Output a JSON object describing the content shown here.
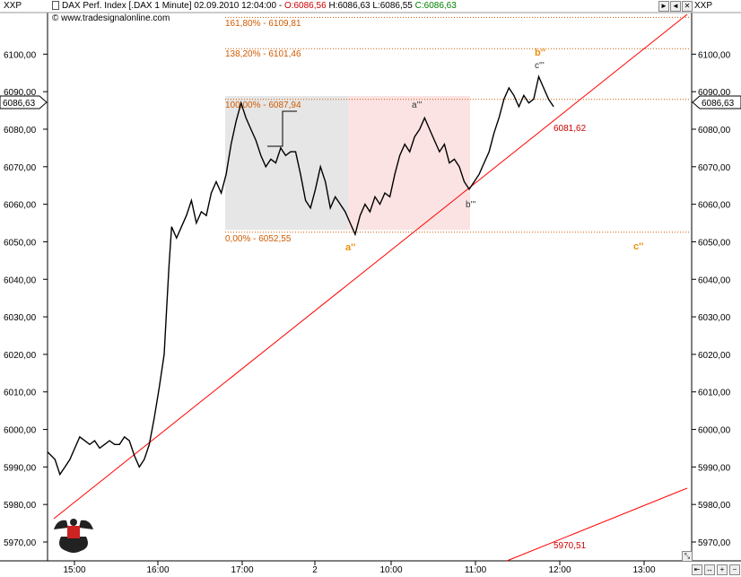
{
  "header": {
    "symbol_left": "XXP",
    "symbol_right": "XXP",
    "title": "DAX Perf. Index [.DAX  1 Minute] 02.09.2010 12:04:00 - ",
    "open": "O:6086,56",
    "high": "H:6086,63",
    "low": "L:6086,55",
    "close": "C:6086,63",
    "source": "www.tradesignalonline.com"
  },
  "last_price": "6086,63",
  "colors": {
    "fib": "#d05a00",
    "trend": "#ff0000",
    "wave_major": "#e8900a",
    "grey_box": "#e6e6e6",
    "pink_box": "#fbe3e3",
    "close_green": "#008000",
    "open_red": "#cc0000"
  },
  "chart_data": {
    "type": "line",
    "title": "DAX Perf. Index [.DAX  1 Minute]",
    "ylim": [
      5965,
      6113
    ],
    "y_ticks": [
      "5970,00",
      "5980,00",
      "5990,00",
      "6000,00",
      "6010,00",
      "6020,00",
      "6030,00",
      "6040,00",
      "6050,00",
      "6060,00",
      "6070,00",
      "6080,00",
      "6090,00",
      "6100,00"
    ],
    "x_tick_labels": [
      "15:00",
      "16:00",
      "17:00",
      "2",
      "10:00",
      "11:00",
      "12:00",
      "13:00"
    ],
    "series": [
      {
        "values": [
          [
            0,
            5994
          ],
          [
            3,
            5992
          ],
          [
            5,
            5988
          ],
          [
            7,
            5990
          ],
          [
            9,
            5992
          ],
          [
            11,
            5995
          ],
          [
            13,
            5998
          ],
          [
            15,
            5997
          ],
          [
            17,
            5996
          ],
          [
            19,
            5997
          ],
          [
            21,
            5995
          ],
          [
            23,
            5996
          ],
          [
            25,
            5997
          ],
          [
            27,
            5996
          ],
          [
            29,
            5996
          ],
          [
            31,
            5998
          ],
          [
            33,
            5997
          ],
          [
            35,
            5993
          ],
          [
            37,
            5990
          ],
          [
            39,
            5992
          ],
          [
            41,
            5996
          ],
          [
            43,
            6003
          ],
          [
            45,
            6011
          ],
          [
            47,
            6020
          ],
          [
            48,
            6032
          ],
          [
            49,
            6044
          ],
          [
            50,
            6054
          ],
          [
            52,
            6051
          ],
          [
            54,
            6054
          ],
          [
            56,
            6057
          ],
          [
            58,
            6061
          ],
          [
            60,
            6055
          ],
          [
            62,
            6058
          ],
          [
            64,
            6057
          ],
          [
            66,
            6063
          ],
          [
            68,
            6066
          ],
          [
            70,
            6063
          ],
          [
            72,
            6068
          ],
          [
            74,
            6076
          ],
          [
            76,
            6082
          ],
          [
            78,
            6087
          ],
          [
            80,
            6083
          ],
          [
            82,
            6080
          ],
          [
            84,
            6077
          ],
          [
            86,
            6073
          ],
          [
            88,
            6070
          ],
          [
            90,
            6072
          ],
          [
            92,
            6071
          ],
          [
            94,
            6075
          ],
          [
            96,
            6073
          ],
          [
            98,
            6074
          ],
          [
            100,
            6074
          ],
          [
            102,
            6068
          ],
          [
            104,
            6061
          ],
          [
            106,
            6059
          ],
          [
            108,
            6064
          ],
          [
            110,
            6070
          ],
          [
            112,
            6066
          ],
          [
            114,
            6059
          ],
          [
            116,
            6062
          ],
          [
            118,
            6060
          ],
          [
            120,
            6058
          ],
          [
            122,
            6055
          ],
          [
            124,
            6052
          ],
          [
            126,
            6057
          ],
          [
            128,
            6060
          ],
          [
            130,
            6058
          ],
          [
            132,
            6062
          ],
          [
            134,
            6060
          ],
          [
            136,
            6063
          ],
          [
            138,
            6062
          ],
          [
            140,
            6068
          ],
          [
            142,
            6073
          ],
          [
            144,
            6076
          ],
          [
            146,
            6074
          ],
          [
            148,
            6078
          ],
          [
            150,
            6080
          ],
          [
            152,
            6083
          ],
          [
            154,
            6080
          ],
          [
            156,
            6077
          ],
          [
            158,
            6074
          ],
          [
            160,
            6076
          ],
          [
            162,
            6071
          ],
          [
            164,
            6072
          ],
          [
            166,
            6070
          ],
          [
            168,
            6066
          ],
          [
            170,
            6064
          ],
          [
            172,
            6066
          ],
          [
            174,
            6068
          ],
          [
            176,
            6071
          ],
          [
            178,
            6074
          ],
          [
            180,
            6079
          ],
          [
            182,
            6083
          ],
          [
            184,
            6088
          ],
          [
            186,
            6091
          ],
          [
            188,
            6089
          ],
          [
            190,
            6086
          ],
          [
            192,
            6089
          ],
          [
            194,
            6087
          ],
          [
            196,
            6088
          ],
          [
            198,
            6094
          ],
          [
            200,
            6091
          ],
          [
            202,
            6088
          ],
          [
            204,
            6086
          ]
        ]
      }
    ],
    "fibonacci": [
      {
        "label": "161,80% - 6109,81",
        "value": 6109.81
      },
      {
        "label": "138,20% - 6101,46",
        "value": 6101.46
      },
      {
        "label": "100,00% - 6087,94",
        "value": 6087.94
      },
      {
        "label": "0,00% - 6052,55",
        "value": 6052.55
      }
    ],
    "trend_labels": [
      "6081,62",
      "5970,51"
    ],
    "wave_labels": {
      "major": [
        "b''",
        "a''",
        "c''"
      ],
      "minor": [
        "a'''",
        "b'''",
        "c'''"
      ]
    },
    "grid": false
  }
}
